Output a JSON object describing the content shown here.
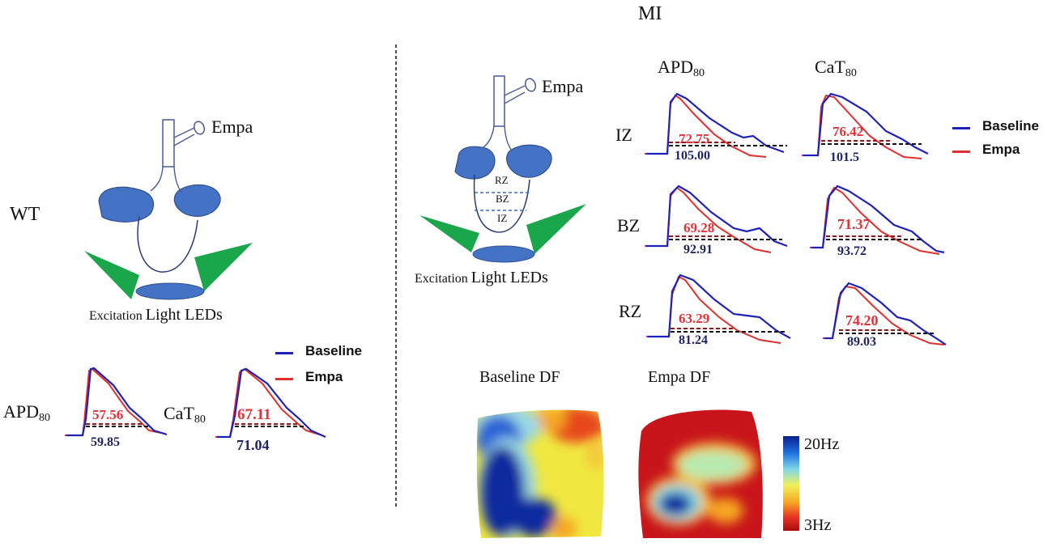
{
  "figure": {
    "mi_title": "MI",
    "wt_label": "WT",
    "empa_drug_label": "Empa",
    "leds_caption_wt": [
      "Excitation",
      "Light LEDs"
    ],
    "leds_caption_mi": [
      "Excitation",
      "Light LEDs"
    ],
    "heart_zones": [
      "RZ",
      "BZ",
      "IZ"
    ],
    "colors": {
      "baseline": "#1f22b8",
      "empa": "#e0302e",
      "heart": "#4472c4",
      "leds": "#1aa64b"
    }
  },
  "legend": {
    "baseline": "Baseline",
    "empa": "Empa"
  },
  "wt": {
    "apd_label": "APD",
    "apd_sub": "80",
    "cat_label": "CaT",
    "cat_sub": "80",
    "apd_empa": "57.56",
    "apd_baseline": "59.85",
    "cat_empa": "67.11",
    "cat_baseline": "71.04"
  },
  "mi": {
    "col_apd": "APD",
    "col_apd_sub": "80",
    "col_cat": "CaT",
    "col_cat_sub": "80",
    "rows": [
      {
        "zone": "IZ",
        "apd_empa": "72.75",
        "apd_baseline": "105.00",
        "cat_empa": "76.42",
        "cat_baseline": "101.5"
      },
      {
        "zone": "BZ",
        "apd_empa": "69.28",
        "apd_baseline": "92.91",
        "cat_empa": "71.37",
        "cat_baseline": "93.72"
      },
      {
        "zone": "RZ",
        "apd_empa": "63.29",
        "apd_baseline": "81.24",
        "cat_empa": "74.20",
        "cat_baseline": "89.03"
      }
    ]
  },
  "df_maps": {
    "baseline_title": "Baseline DF",
    "empa_title": "Empa DF",
    "scale_max": "20Hz",
    "scale_min": "3Hz"
  }
}
